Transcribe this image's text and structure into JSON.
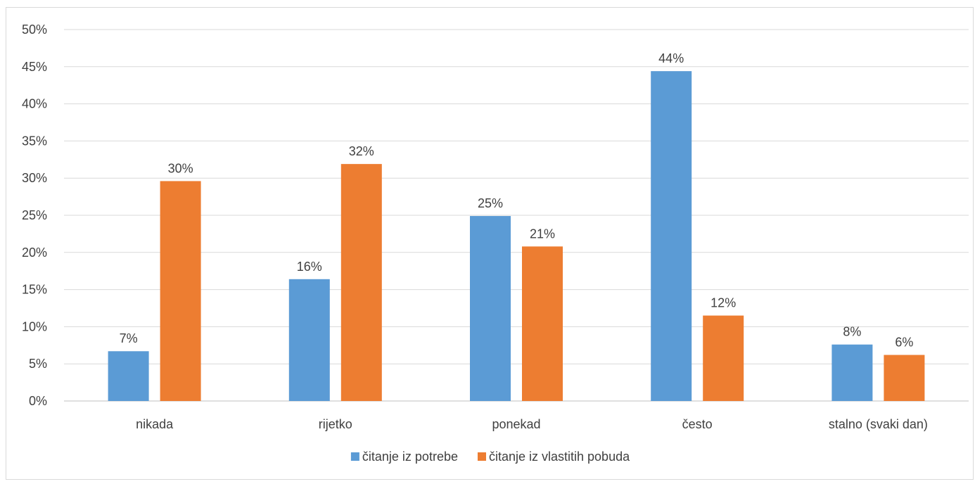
{
  "chart_data": {
    "type": "bar",
    "title": "",
    "xlabel": "",
    "ylabel": "",
    "categories": [
      "nikada",
      "rijetko",
      "ponekad",
      "često",
      "stalno (svaki dan)"
    ],
    "series": [
      {
        "name": "čitanje iz potrebe",
        "color": "#5b9bd5",
        "values": [
          6.7,
          16.4,
          24.9,
          44.4,
          7.6
        ],
        "labels": [
          "7%",
          "16%",
          "25%",
          "44%",
          "8%"
        ]
      },
      {
        "name": "čitanje iz vlastitih pobuda",
        "color": "#ed7d31",
        "values": [
          29.6,
          31.9,
          20.8,
          11.5,
          6.2
        ],
        "labels": [
          "30%",
          "32%",
          "21%",
          "12%",
          "6%"
        ]
      }
    ],
    "ylim": [
      0,
      50
    ],
    "yticks": [
      "0%",
      "5%",
      "10%",
      "15%",
      "20%",
      "25%",
      "30%",
      "35%",
      "40%",
      "45%",
      "50%"
    ],
    "grid": true,
    "legend_position": "bottom"
  }
}
